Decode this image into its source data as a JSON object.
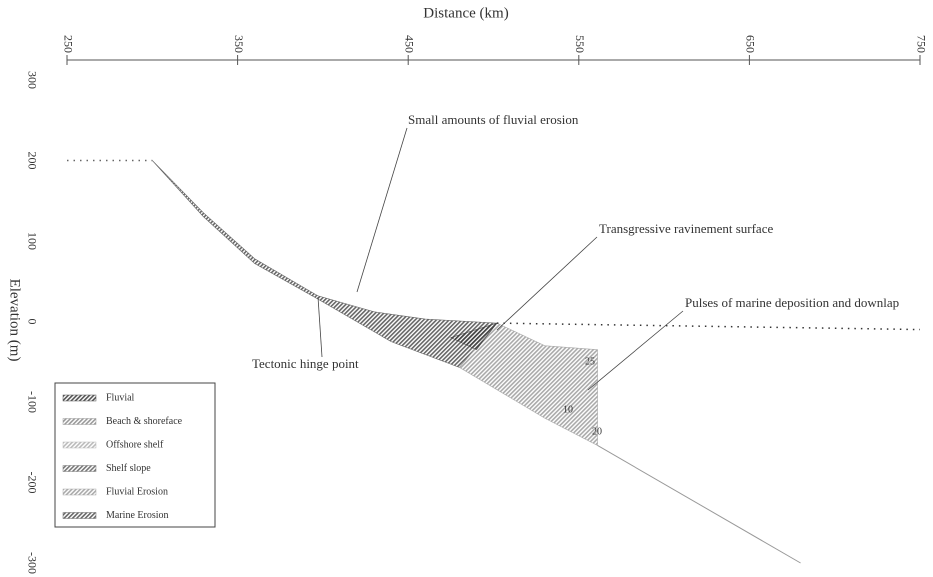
{
  "chart_data": {
    "type": "section",
    "x_label": "Distance (km)",
    "y_label": "Elevation (m)",
    "xlim": [
      250,
      750
    ],
    "xticks": [
      250,
      350,
      450,
      550,
      650,
      750
    ],
    "ylim": [
      -300,
      300
    ],
    "yticks": [
      300,
      200,
      100,
      0,
      -100,
      -200,
      -300
    ],
    "lines": [
      {
        "style": "dotted",
        "color": "#666666",
        "x": [
          250,
          300
        ],
        "y": [
          200,
          200
        ]
      },
      {
        "style": "dotted",
        "color": "#333333",
        "x": [
          502,
          750
        ],
        "y": [
          -2,
          -10
        ]
      },
      {
        "style": "solid",
        "color": "#999999",
        "x": [
          561,
          680
        ],
        "y": [
          -154,
          -300
        ]
      }
    ],
    "areas": [
      {
        "color": "#666666",
        "x": [
          300,
          330,
          360,
          397,
          430,
          460,
          502,
          480,
          440,
          397,
          360,
          330
        ],
        "y": [
          200,
          135,
          78,
          32,
          12,
          3,
          -2,
          -57,
          -25,
          28,
          72,
          130
        ]
      },
      {
        "color": "#aaaaaa",
        "x": [
          480,
          502,
          530,
          561,
          561,
          530
        ],
        "y": [
          -57,
          -2,
          -30,
          -35,
          -154,
          -120
        ]
      },
      {
        "color": "#444444",
        "x": [
          475,
          502,
          490
        ],
        "y": [
          -20,
          -2,
          -35
        ]
      }
    ],
    "legend": [
      {
        "name": "Fluvial",
        "color": "#555555"
      },
      {
        "name": "Beach & shoreface",
        "color": "#999999"
      },
      {
        "name": "Offshore shelf",
        "color": "#bbbbbb"
      },
      {
        "name": "Shelf slope",
        "color": "#777777"
      },
      {
        "name": "Fluvial Erosion",
        "color": "#aaaaaa"
      },
      {
        "name": "Marine Erosion",
        "color": "#666666"
      }
    ],
    "annotations": [
      "Small amounts of fluvial erosion",
      "Transgressive ravinement surface",
      "Pulses of marine deposition and downlap",
      "Tectonic hinge point"
    ],
    "time_labels": [
      25,
      10,
      20
    ]
  }
}
